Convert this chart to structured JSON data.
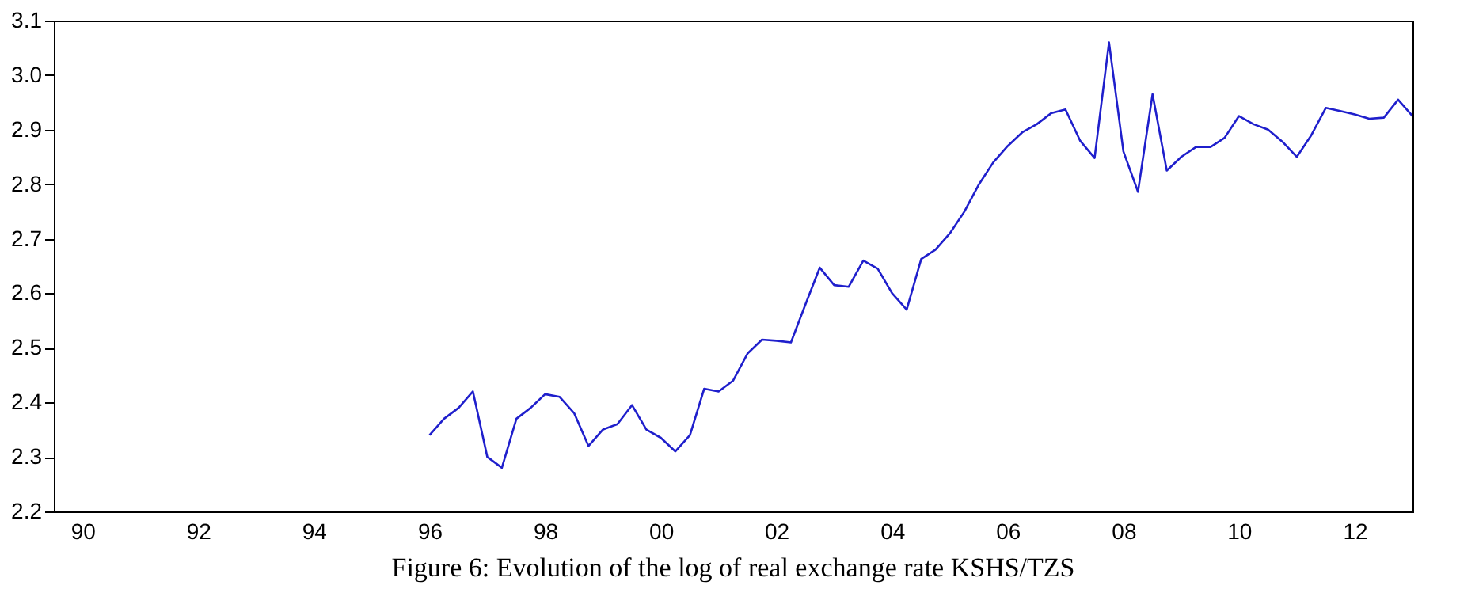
{
  "chart_data": {
    "type": "line",
    "title": "Figure 6: Evolution of the log of real exchange rate KSHS/TZS",
    "x": [
      "1996-07",
      "1996-10",
      "1997-01",
      "1997-04",
      "1997-07",
      "1997-10",
      "1998-01",
      "1998-04",
      "1998-07",
      "1998-10",
      "1999-01",
      "1999-04",
      "1999-07",
      "1999-10",
      "2000-01",
      "2000-04",
      "2000-07",
      "2000-10",
      "2001-01",
      "2001-04",
      "2001-07",
      "2001-10",
      "2002-01",
      "2002-04",
      "2002-07",
      "2002-10",
      "2003-01",
      "2003-04",
      "2003-07",
      "2003-10",
      "2004-01",
      "2004-04",
      "2004-07",
      "2004-10",
      "2005-01",
      "2005-04",
      "2005-07",
      "2005-10",
      "2006-01",
      "2006-04",
      "2006-07",
      "2006-10",
      "2007-01",
      "2007-04",
      "2007-07",
      "2007-10",
      "2008-01",
      "2008-04",
      "2008-07",
      "2008-10",
      "2009-01",
      "2009-04",
      "2009-07",
      "2009-10",
      "2010-01",
      "2010-04",
      "2010-07",
      "2010-10",
      "2011-01",
      "2011-04",
      "2011-07",
      "2011-10",
      "2012-01",
      "2012-04",
      "2012-07",
      "2012-10",
      "2013-01",
      "2013-04",
      "2013-07"
    ],
    "series": [
      {
        "color": "#1f1fcc",
        "values": [
          2.34,
          2.37,
          2.39,
          2.42,
          2.3,
          2.28,
          2.37,
          2.39,
          2.415,
          2.41,
          2.38,
          2.32,
          2.35,
          2.36,
          2.395,
          2.35,
          2.335,
          2.31,
          2.34,
          2.425,
          2.42,
          2.44,
          2.49,
          2.515,
          2.513,
          2.51,
          2.58,
          2.647,
          2.615,
          2.612,
          2.66,
          2.645,
          2.6,
          2.57,
          2.663,
          2.68,
          2.71,
          2.75,
          2.8,
          2.84,
          2.87,
          2.895,
          2.91,
          2.93,
          2.937,
          2.88,
          2.848,
          3.06,
          2.86,
          2.786,
          2.965,
          2.825,
          2.85,
          2.868,
          2.868,
          2.885,
          2.925,
          2.91,
          2.9,
          2.878,
          2.85,
          2.89,
          2.94,
          2.934,
          2.928,
          2.92,
          2.922,
          2.955,
          2.925
        ]
      }
    ],
    "xlim": [
      "1990-01",
      "2013-07"
    ],
    "xticks": [
      {
        "value": "1990-07",
        "label": "90"
      },
      {
        "value": "1992-07",
        "label": "92"
      },
      {
        "value": "1994-07",
        "label": "94"
      },
      {
        "value": "1996-07",
        "label": "96"
      },
      {
        "value": "1998-07",
        "label": "98"
      },
      {
        "value": "2000-07",
        "label": "00"
      },
      {
        "value": "2002-07",
        "label": "02"
      },
      {
        "value": "2004-07",
        "label": "04"
      },
      {
        "value": "2006-07",
        "label": "06"
      },
      {
        "value": "2008-07",
        "label": "08"
      },
      {
        "value": "2010-07",
        "label": "10"
      },
      {
        "value": "2012-07",
        "label": "12"
      }
    ],
    "ylim": [
      2.2,
      3.1
    ],
    "yticks": [
      2.2,
      2.3,
      2.4,
      2.5,
      2.6,
      2.7,
      2.8,
      2.9,
      {
        "value": 3,
        "label": "3.0"
      },
      3.1
    ],
    "grid": false,
    "marker": "none",
    "line_style": "solid"
  }
}
